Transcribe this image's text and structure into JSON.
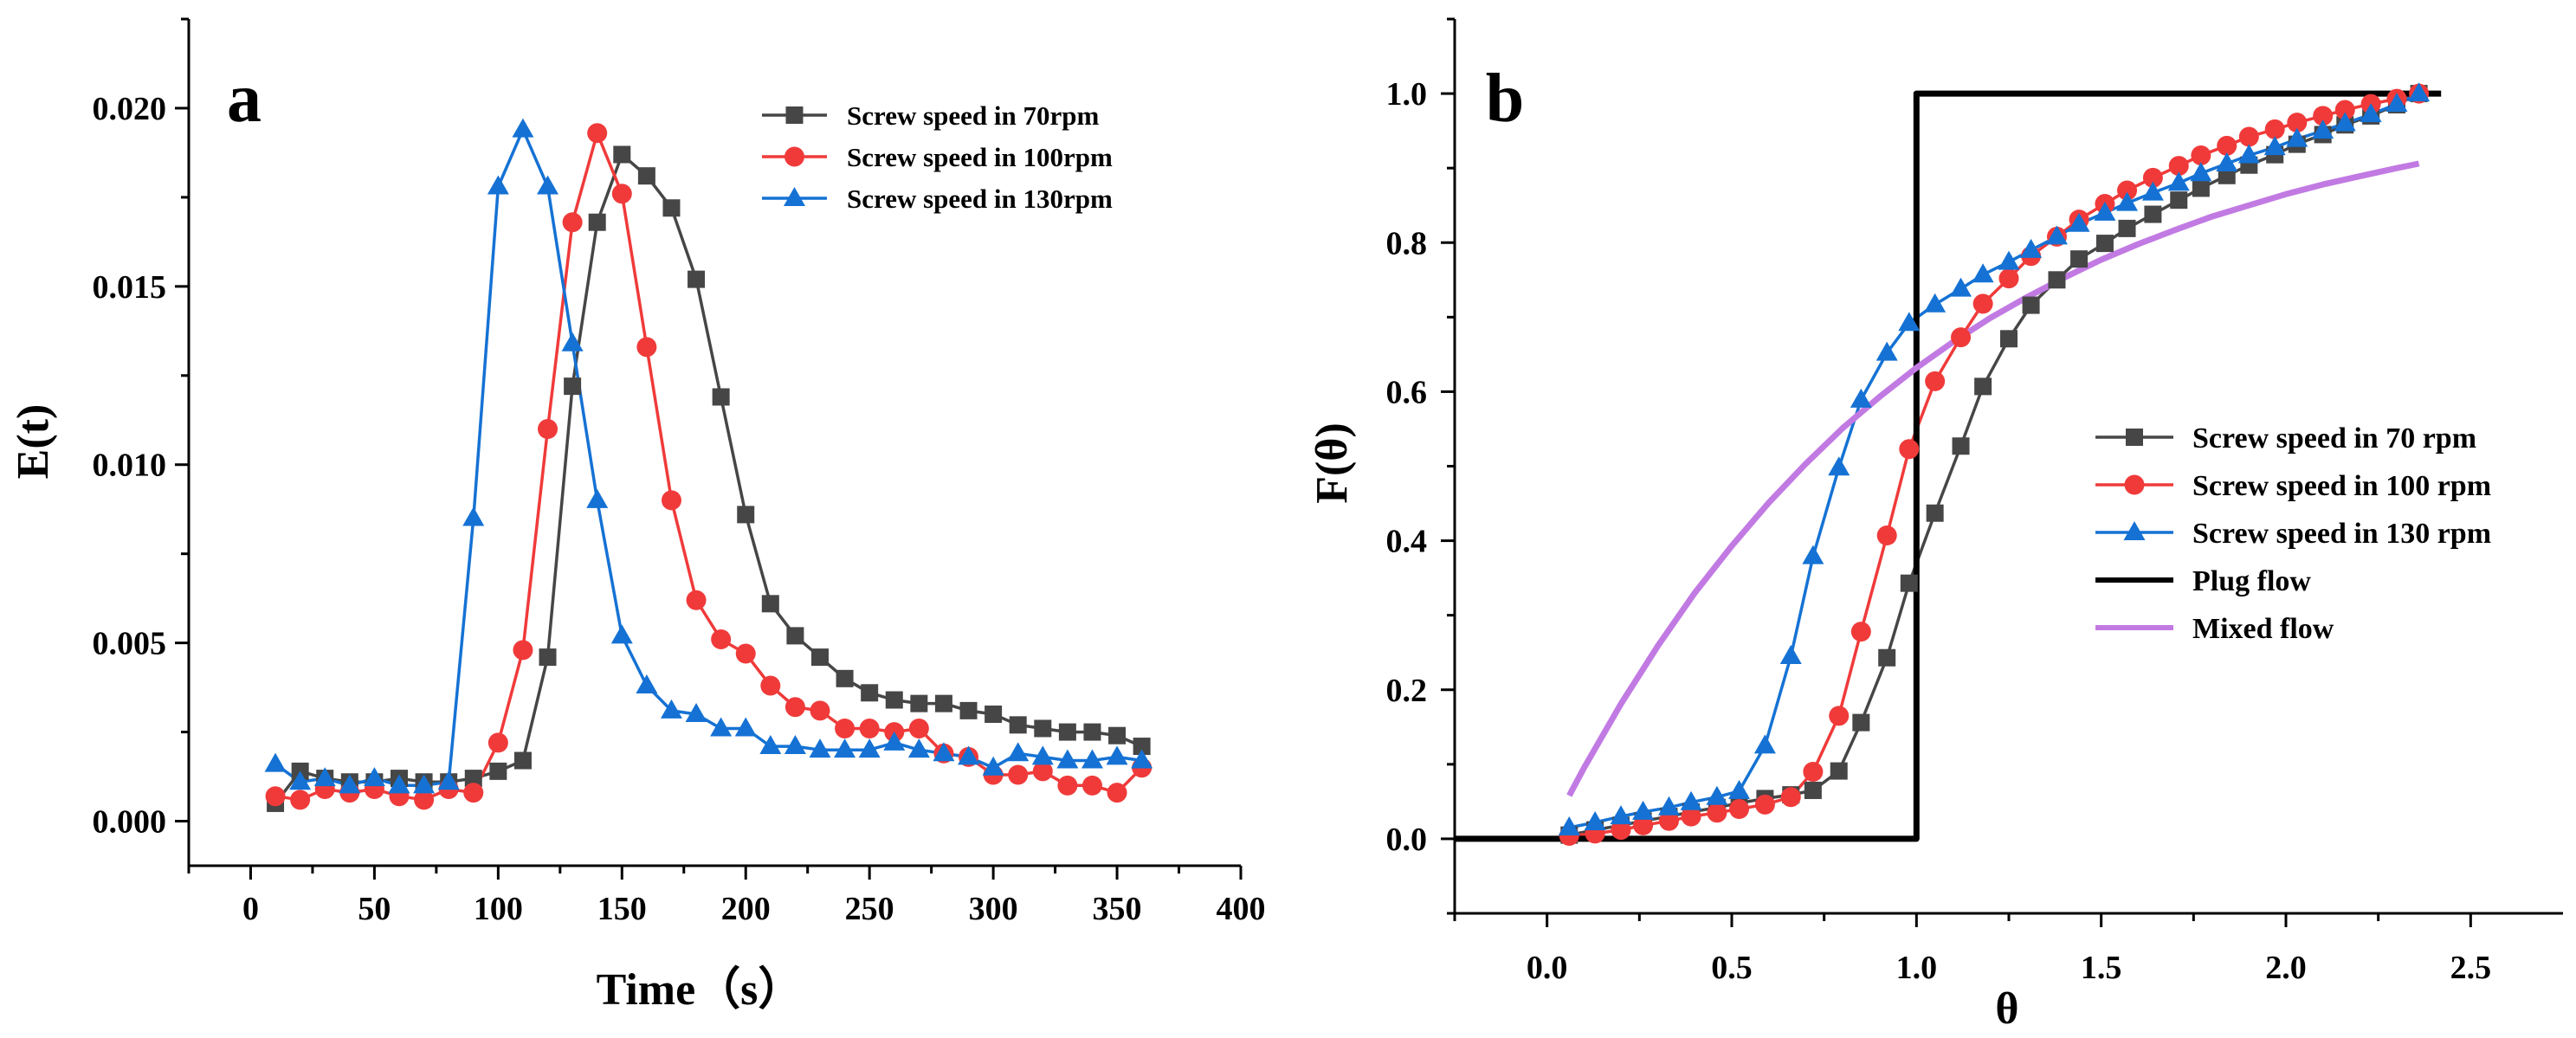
{
  "chart_data": [
    {
      "type": "line",
      "panel_label": "a",
      "xlabel": "Time（s）",
      "ylabel": "E(t)",
      "xlim": [
        -25,
        400
      ],
      "ylim": [
        -0.00125,
        0.0225
      ],
      "xticks": [
        0,
        50,
        100,
        150,
        200,
        250,
        300,
        350,
        400
      ],
      "yticks": [
        0.0,
        0.005,
        0.01,
        0.015,
        0.02
      ],
      "xtick_labels": [
        "0",
        "50",
        "100",
        "150",
        "200",
        "250",
        "300",
        "350",
        "400"
      ],
      "ytick_labels": [
        "0.000",
        "0.005",
        "0.010",
        "0.015",
        "0.020"
      ],
      "legend_position": "top-right",
      "series": [
        {
          "name": "Screw speed in 70rpm",
          "color": "#464646",
          "marker": "square",
          "x": [
            10,
            20,
            30,
            40,
            50,
            60,
            70,
            80,
            90,
            100,
            110,
            120,
            130,
            140,
            150,
            160,
            170,
            180,
            190,
            200,
            210,
            220,
            230,
            240,
            250,
            260,
            270,
            280,
            290,
            300,
            310,
            320,
            330,
            340,
            350,
            360
          ],
          "y": [
            0.0005,
            0.0014,
            0.0012,
            0.0011,
            0.0011,
            0.0012,
            0.0011,
            0.0011,
            0.0012,
            0.0014,
            0.0017,
            0.0046,
            0.0122,
            0.0168,
            0.0187,
            0.0181,
            0.0172,
            0.0152,
            0.0119,
            0.0086,
            0.0061,
            0.0052,
            0.0046,
            0.004,
            0.0036,
            0.0034,
            0.0033,
            0.0033,
            0.0031,
            0.003,
            0.0027,
            0.0026,
            0.0025,
            0.0025,
            0.0024,
            0.0021
          ]
        },
        {
          "name": "Screw speed in 100rpm",
          "color": "#f03a3a",
          "marker": "circle",
          "x": [
            10,
            20,
            30,
            40,
            50,
            60,
            70,
            80,
            90,
            100,
            110,
            120,
            130,
            140,
            150,
            160,
            170,
            180,
            190,
            200,
            210,
            220,
            230,
            240,
            250,
            260,
            270,
            280,
            290,
            300,
            310,
            320,
            330,
            340,
            350,
            360
          ],
          "y": [
            0.0007,
            0.0006,
            0.0009,
            0.0008,
            0.0009,
            0.0007,
            0.0006,
            0.0009,
            0.0008,
            0.0022,
            0.0048,
            0.011,
            0.0168,
            0.0193,
            0.0176,
            0.0133,
            0.009,
            0.0062,
            0.0051,
            0.0047,
            0.0038,
            0.0032,
            0.0031,
            0.0026,
            0.0026,
            0.0025,
            0.0026,
            0.0019,
            0.0018,
            0.0013,
            0.0013,
            0.0014,
            0.001,
            0.001,
            0.0008,
            0.0015
          ]
        },
        {
          "name": "Screw speed in 130rpm",
          "color": "#1572d4",
          "marker": "triangle",
          "x": [
            10,
            20,
            30,
            40,
            50,
            60,
            70,
            80,
            90,
            100,
            110,
            120,
            130,
            140,
            150,
            160,
            170,
            180,
            190,
            200,
            210,
            220,
            230,
            240,
            250,
            260,
            270,
            280,
            290,
            300,
            310,
            320,
            330,
            340,
            350,
            360
          ],
          "y": [
            0.0016,
            0.0011,
            0.0012,
            0.001,
            0.0012,
            0.001,
            0.001,
            0.0011,
            0.0085,
            0.0178,
            0.0194,
            0.0178,
            0.0134,
            0.009,
            0.0052,
            0.0038,
            0.0031,
            0.003,
            0.0026,
            0.0026,
            0.0021,
            0.0021,
            0.002,
            0.002,
            0.002,
            0.0022,
            0.002,
            0.0019,
            0.0018,
            0.0015,
            0.0019,
            0.0018,
            0.0017,
            0.0017,
            0.0018,
            0.0017
          ]
        }
      ]
    },
    {
      "type": "line",
      "panel_label": "b",
      "xlabel": "θ",
      "ylabel": "F(θ)",
      "xlim": [
        -0.25,
        2.75
      ],
      "ylim": [
        -0.1,
        1.1
      ],
      "xticks": [
        0.0,
        0.5,
        1.0,
        1.5,
        2.0,
        2.5
      ],
      "yticks": [
        0.0,
        0.2,
        0.4,
        0.6,
        0.8,
        1.0
      ],
      "xtick_labels": [
        "0.0",
        "0.5",
        "1.0",
        "1.5",
        "2.0",
        "2.5"
      ],
      "ytick_labels": [
        "0.0",
        "0.2",
        "0.4",
        "0.6",
        "0.8",
        "1.0"
      ],
      "legend_position": "right",
      "series": [
        {
          "name": "Screw speed in 70 rpm",
          "color": "#464646",
          "marker": "square",
          "x": [
            0.06,
            0.13,
            0.2,
            0.26,
            0.33,
            0.39,
            0.46,
            0.52,
            0.59,
            0.66,
            0.72,
            0.79,
            0.85,
            0.92,
            0.98,
            1.05,
            1.12,
            1.18,
            1.25,
            1.31,
            1.38,
            1.44,
            1.51,
            1.57,
            1.64,
            1.71,
            1.77,
            1.84,
            1.9,
            1.97,
            2.03,
            2.1,
            2.16,
            2.23,
            2.3,
            2.36
          ],
          "y": [
            0.005,
            0.012,
            0.018,
            0.024,
            0.03,
            0.036,
            0.042,
            0.048,
            0.054,
            0.059,
            0.065,
            0.091,
            0.156,
            0.243,
            0.343,
            0.437,
            0.527,
            0.607,
            0.671,
            0.716,
            0.75,
            0.778,
            0.799,
            0.819,
            0.838,
            0.857,
            0.873,
            0.89,
            0.904,
            0.918,
            0.932,
            0.945,
            0.958,
            0.97,
            0.985,
            1.0
          ]
        },
        {
          "name": "Screw speed in 100 rpm",
          "color": "#f03a3a",
          "marker": "circle",
          "x": [
            0.06,
            0.13,
            0.2,
            0.26,
            0.33,
            0.39,
            0.46,
            0.52,
            0.59,
            0.66,
            0.72,
            0.79,
            0.85,
            0.92,
            0.98,
            1.05,
            1.12,
            1.18,
            1.25,
            1.31,
            1.38,
            1.44,
            1.51,
            1.57,
            1.64,
            1.71,
            1.77,
            1.84,
            1.9,
            1.97,
            2.03,
            2.1,
            2.16,
            2.23,
            2.3,
            2.36
          ],
          "y": [
            0.004,
            0.007,
            0.012,
            0.018,
            0.024,
            0.03,
            0.035,
            0.04,
            0.046,
            0.056,
            0.09,
            0.165,
            0.278,
            0.407,
            0.523,
            0.614,
            0.673,
            0.718,
            0.752,
            0.782,
            0.808,
            0.831,
            0.852,
            0.87,
            0.887,
            0.903,
            0.917,
            0.93,
            0.942,
            0.952,
            0.961,
            0.97,
            0.978,
            0.986,
            0.993,
            1.0
          ]
        },
        {
          "name": "Screw speed in 130 rpm",
          "color": "#1572d4",
          "marker": "triangle",
          "x": [
            0.06,
            0.13,
            0.2,
            0.26,
            0.33,
            0.39,
            0.46,
            0.52,
            0.59,
            0.66,
            0.72,
            0.79,
            0.85,
            0.92,
            0.98,
            1.05,
            1.12,
            1.18,
            1.25,
            1.31,
            1.38,
            1.44,
            1.51,
            1.57,
            1.64,
            1.71,
            1.77,
            1.84,
            1.9,
            1.97,
            2.03,
            2.1,
            2.16,
            2.23,
            2.3,
            2.36
          ],
          "y": [
            0.015,
            0.022,
            0.03,
            0.036,
            0.042,
            0.049,
            0.056,
            0.064,
            0.125,
            0.245,
            0.379,
            0.498,
            0.589,
            0.652,
            0.692,
            0.717,
            0.738,
            0.757,
            0.774,
            0.79,
            0.808,
            0.825,
            0.84,
            0.853,
            0.867,
            0.88,
            0.893,
            0.906,
            0.917,
            0.928,
            0.939,
            0.95,
            0.96,
            0.972,
            0.986,
            1.0
          ]
        },
        {
          "name": "Plug flow",
          "color": "#000000",
          "marker": "none",
          "width": 7,
          "x": [
            -0.25,
            1.0,
            1.0,
            2.42
          ],
          "y": [
            0.0,
            0.0,
            1.0,
            1.0
          ]
        },
        {
          "name": "Mixed flow",
          "color": "#c27ae3",
          "marker": "none",
          "width": 7,
          "x": [
            0.06,
            0.1,
            0.2,
            0.3,
            0.4,
            0.5,
            0.6,
            0.7,
            0.8,
            0.9,
            1.0,
            1.1,
            1.2,
            1.3,
            1.4,
            1.5,
            1.6,
            1.7,
            1.8,
            1.9,
            2.0,
            2.1,
            2.2,
            2.3,
            2.36
          ],
          "y": [
            0.058,
            0.095,
            0.181,
            0.259,
            0.33,
            0.393,
            0.451,
            0.503,
            0.551,
            0.593,
            0.632,
            0.667,
            0.699,
            0.727,
            0.753,
            0.777,
            0.798,
            0.817,
            0.835,
            0.85,
            0.865,
            0.878,
            0.889,
            0.9,
            0.906
          ]
        }
      ]
    }
  ]
}
